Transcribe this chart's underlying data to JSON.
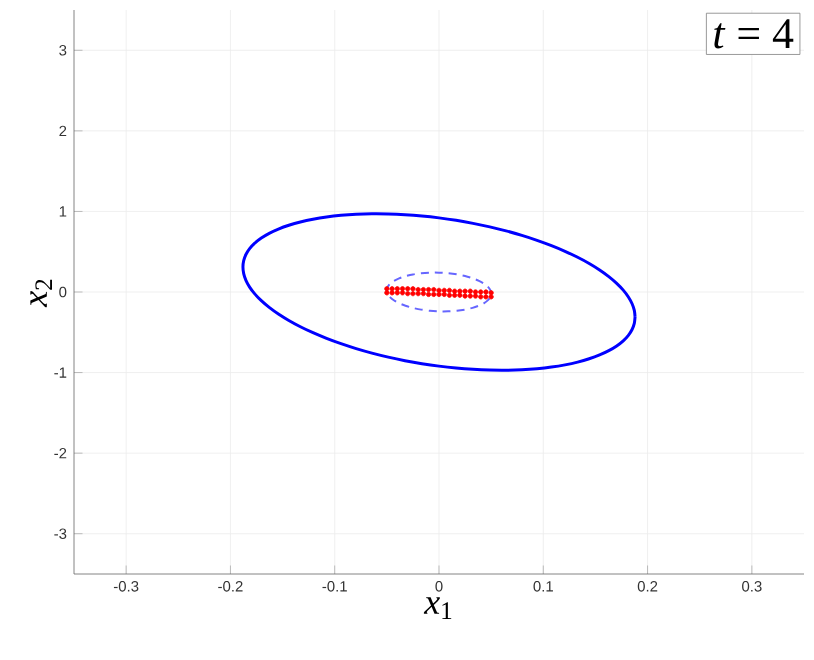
{
  "chart_data": {
    "type": "scatter",
    "xlabel": "*x*$_{1}$",
    "ylabel": "*x*$_{2}$",
    "annotations": [
      "*t* = 4"
    ],
    "xlim": [
      -0.35,
      0.35
    ],
    "ylim": [
      -3.5,
      3.5
    ],
    "xticks": [
      -0.3,
      -0.2,
      -0.1,
      0,
      0.1,
      0.2,
      0.3
    ],
    "yticks": [
      -3,
      -2,
      -1,
      0,
      1,
      2,
      3
    ],
    "grid": true,
    "series": [
      {
        "color": "#ff0000",
        "x": [
          -0.05,
          -0.045,
          -0.04,
          -0.035,
          -0.03,
          -0.025,
          -0.02,
          -0.015,
          -0.01,
          -0.005,
          0,
          0.005,
          0.01,
          0.015,
          0.02,
          0.025,
          0.03,
          0.035,
          0.04,
          0.045,
          0.05,
          -0.05,
          -0.045,
          -0.04,
          -0.035,
          -0.03,
          -0.025,
          -0.02,
          -0.015,
          -0.01,
          -0.005,
          0,
          0.005,
          0.01,
          0.015,
          0.02,
          0.025,
          0.03,
          0.035,
          0.04,
          0.045,
          0.05
        ],
        "values": [
          0.04,
          0.04,
          0.04,
          0.04,
          0.04,
          0.04,
          0.03,
          0.03,
          0.03,
          0.03,
          0.02,
          0.02,
          0.02,
          0.01,
          0.01,
          0.01,
          0.01,
          0,
          0,
          0,
          -0.01,
          -0.01,
          -0.01,
          -0.01,
          -0.01,
          -0.02,
          -0.02,
          -0.02,
          -0.02,
          -0.03,
          -0.03,
          -0.03,
          -0.03,
          -0.04,
          -0.04,
          -0.04,
          -0.05,
          -0.05,
          -0.05,
          -0.06,
          -0.06,
          -0.06
        ]
      }
    ]
  }
}
